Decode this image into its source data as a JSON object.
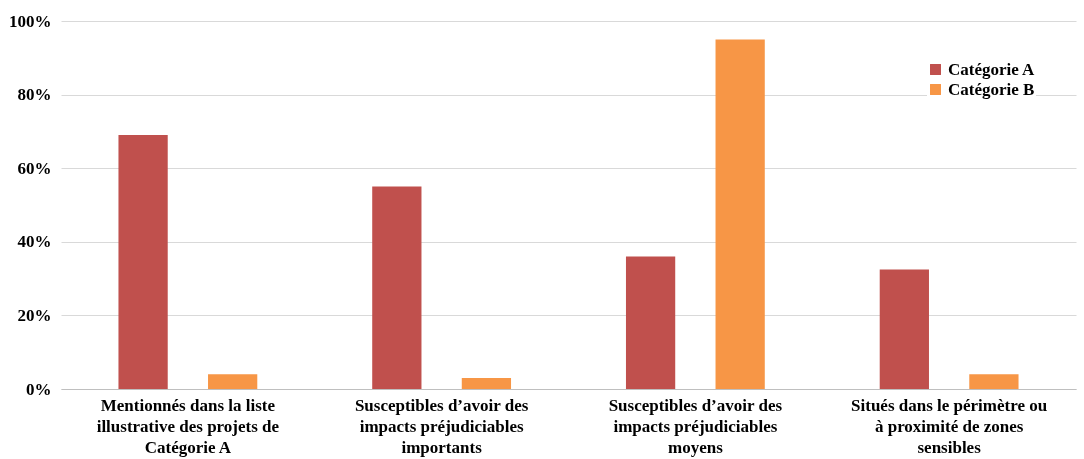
{
  "chart_data": {
    "type": "bar",
    "categories": [
      "Mentionnés dans la liste illustrative des projets de Catégorie A",
      "Susceptibles d’avoir des impacts préjudiciables importants",
      "Susceptibles d’avoir des impacts préjudiciables moyens",
      "Situés dans le périmètre ou à proximité de zones sensibles"
    ],
    "series": [
      {
        "name": "Catégorie A",
        "color": "#c0504d",
        "values": [
          69,
          55,
          36,
          32.5
        ]
      },
      {
        "name": "Catégorie B",
        "color": "#f79646",
        "values": [
          4,
          3,
          95,
          4
        ]
      }
    ],
    "ylim": [
      0,
      100
    ],
    "yticks": [
      {
        "value": 0,
        "label": "0%"
      },
      {
        "value": 20,
        "label": "20%"
      },
      {
        "value": 40,
        "label": "40%"
      },
      {
        "value": 60,
        "label": "60%"
      },
      {
        "value": 80,
        "label": "80%"
      },
      {
        "value": 100,
        "label": "100%"
      }
    ],
    "grid": "y",
    "legend": "top right"
  }
}
